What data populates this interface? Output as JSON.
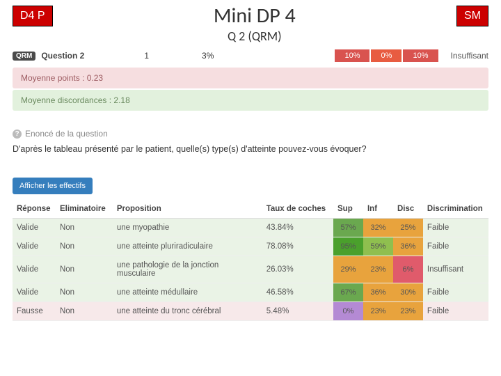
{
  "header": {
    "left_badge": "D4 P",
    "right_badge": "SM",
    "title": "Mini DP 4",
    "subtitle": "Q 2 (QRM)"
  },
  "qbar": {
    "pill": "QRM",
    "label": "Question 2",
    "num1": "1",
    "num2": "3%",
    "pcts": [
      {
        "value": "10%",
        "bg": "#d9534f"
      },
      {
        "value": "0%",
        "bg": "#e85c41"
      },
      {
        "value": "10%",
        "bg": "#d9534f"
      }
    ],
    "status": "Insuffisant"
  },
  "banners": {
    "points": "Moyenne points : 0.23",
    "disc": "Moyenne discordances : 2.18"
  },
  "enonce": {
    "heading": "Enoncé de la question",
    "text": "D'après le tableau présenté par le patient, quelle(s) type(s) d'atteinte pouvez-vous évoquer?"
  },
  "button": {
    "afficher": "Afficher les effectifs"
  },
  "table": {
    "columns": [
      "Réponse",
      "Eliminatoire",
      "Proposition",
      "Taux de coches",
      "Sup",
      "Inf",
      "Disc",
      "Discrimination"
    ],
    "col_widths": [
      "60px",
      "80px",
      "210px",
      "100px",
      "42px",
      "42px",
      "42px",
      "90px"
    ],
    "rows": [
      {
        "kind": "valid",
        "reponse": "Valide",
        "elim": "Non",
        "prop": "une myopathie",
        "taux": "43.84%",
        "sup": {
          "v": "57%",
          "bg": "#6aa84f"
        },
        "inf": {
          "v": "32%",
          "bg": "#e8a33d"
        },
        "disc": {
          "v": "25%",
          "bg": "#e8a33d"
        },
        "discrim": "Faible"
      },
      {
        "kind": "valid",
        "reponse": "Valide",
        "elim": "Non",
        "prop": "une atteinte pluriradiculaire",
        "taux": "78.08%",
        "sup": {
          "v": "95%",
          "bg": "#4aa02c"
        },
        "inf": {
          "v": "59%",
          "bg": "#8fbf4f"
        },
        "disc": {
          "v": "36%",
          "bg": "#e8a33d"
        },
        "discrim": "Faible"
      },
      {
        "kind": "valid",
        "reponse": "Valide",
        "elim": "Non",
        "prop": "une pathologie de la jonction musculaire",
        "taux": "26.03%",
        "sup": {
          "v": "29%",
          "bg": "#e8a33d"
        },
        "inf": {
          "v": "23%",
          "bg": "#e8a33d"
        },
        "disc": {
          "v": "6%",
          "bg": "#e05b6b"
        },
        "discrim": "Insuffisant"
      },
      {
        "kind": "valid",
        "reponse": "Valide",
        "elim": "Non",
        "prop": "une atteinte médullaire",
        "taux": "46.58%",
        "sup": {
          "v": "67%",
          "bg": "#6aa84f"
        },
        "inf": {
          "v": "36%",
          "bg": "#e8a33d"
        },
        "disc": {
          "v": "30%",
          "bg": "#e8a33d"
        },
        "discrim": "Faible"
      },
      {
        "kind": "false",
        "reponse": "Fausse",
        "elim": "Non",
        "prop": "une atteinte du tronc cérébral",
        "taux": "5.48%",
        "sup": {
          "v": "0%",
          "bg": "#b48ad4"
        },
        "inf": {
          "v": "23%",
          "bg": "#e8a33d"
        },
        "disc": {
          "v": "23%",
          "bg": "#e8a33d"
        },
        "discrim": "Faible"
      }
    ]
  }
}
